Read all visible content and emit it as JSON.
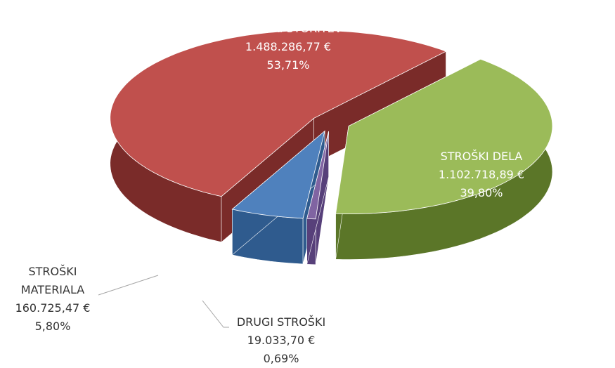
{
  "chart_data": {
    "type": "pie3d",
    "categories": [
      "STROŠKI STORITEV",
      "STROŠKI DELA",
      "DRUGI STROŠKI",
      "STROŠKI MATERIALA"
    ],
    "values": [
      53.71,
      39.8,
      0.69,
      5.8
    ],
    "value_labels": [
      "53,71%",
      "39,80%",
      "0,69%",
      "5,80%"
    ],
    "amounts": [
      1488286.77,
      1102718.89,
      19033.7,
      160725.47
    ],
    "amount_labels": [
      "1.488.286,77 €",
      "1.102.718,89 €",
      "19.033,70 €",
      "160.725,47 €"
    ],
    "colors": [
      "#c0504d",
      "#9bbb59",
      "#8064a2",
      "#4f81bd"
    ],
    "side_colors": [
      "#7a2b29",
      "#5b7628",
      "#57407a",
      "#2f5b8e"
    ]
  }
}
